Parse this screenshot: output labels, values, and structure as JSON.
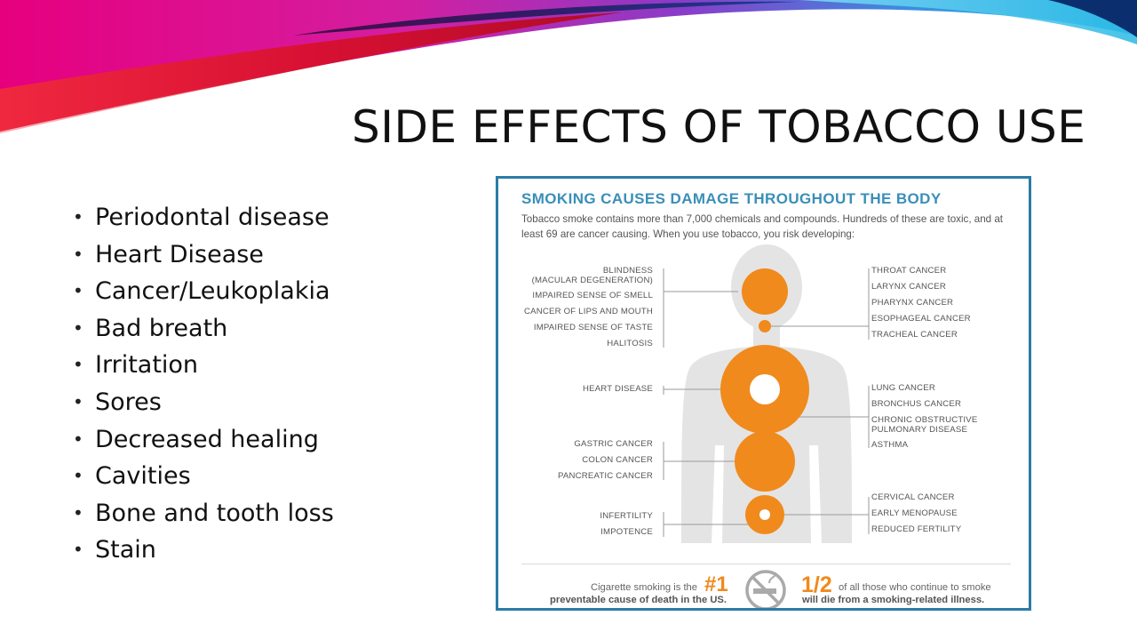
{
  "slide": {
    "title": "SIDE EFFECTS OF TOBACCO USE",
    "bullets": [
      "Periodontal disease",
      "Heart Disease",
      "Cancer/Leukoplakia",
      "Bad breath",
      "Irritation",
      "Sores",
      "Decreased healing",
      "Cavities",
      "Bone and tooth loss",
      "Stain"
    ],
    "colors": {
      "swoosh_pink": "#e6007e",
      "swoosh_cyan": "#29b8e5",
      "swoosh_red": "#e8203a"
    }
  },
  "infographic": {
    "title": "SMOKING CAUSES DAMAGE THROUGHOUT THE BODY",
    "subtitle": "Tobacco smoke contains more than 7,000 chemicals and compounds. Hundreds of these are toxic, and at least 69 are cancer causing. When you use tobacco, you risk developing:",
    "left_labels": {
      "head": [
        "BLINDNESS",
        "(MACULAR DEGENERATION)",
        "IMPAIRED SENSE OF SMELL",
        "CANCER OF LIPS AND MOUTH",
        "IMPAIRED SENSE OF TASTE",
        "HALITOSIS"
      ],
      "chest": [
        "HEART DISEASE"
      ],
      "abdomen": [
        "GASTRIC CANCER",
        "COLON CANCER",
        "PANCREATIC CANCER"
      ],
      "pelvis": [
        "INFERTILITY",
        "IMPOTENCE"
      ]
    },
    "right_labels": {
      "throat": [
        "THROAT CANCER",
        "LARYNX CANCER",
        "PHARYNX CANCER",
        "ESOPHAGEAL CANCER",
        "TRACHEAL CANCER"
      ],
      "lungs": [
        "LUNG CANCER",
        "BRONCHUS CANCER",
        "CHRONIC OBSTRUCTIVE",
        "PULMONARY DISEASE",
        "ASTHMA"
      ],
      "pelvis": [
        "CERVICAL CANCER",
        "EARLY MENOPAUSE",
        "REDUCED FERTILITY"
      ]
    },
    "footer": {
      "left_text_1": "Cigarette smoking is the",
      "rank": "#1",
      "left_text_2": "preventable cause of death in the US.",
      "fraction": "1/2",
      "right_text_1": "of all those who continue to smoke",
      "right_text_2": "will die from a smoking-related illness."
    },
    "colors": {
      "accent": "#f08a1c",
      "title": "#3a8fb7",
      "border": "#2a7ca6",
      "silhouette": "#e4e4e4"
    }
  }
}
